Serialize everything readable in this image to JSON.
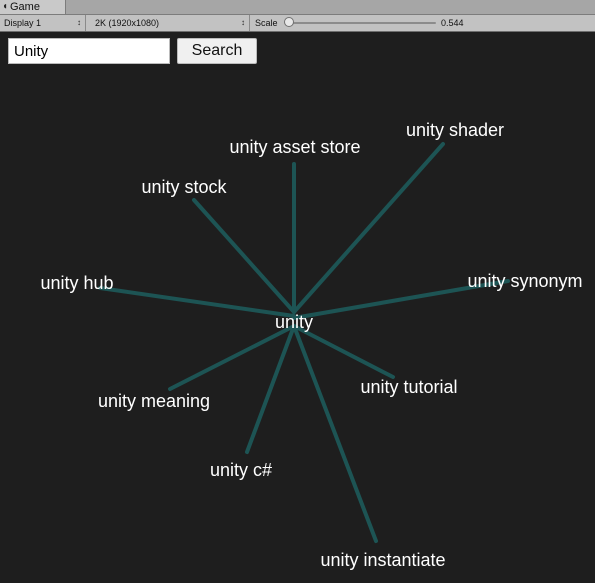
{
  "tab": {
    "icon": "pacman-game-icon",
    "label": "Game"
  },
  "toolbar": {
    "display": "Display 1",
    "resolution": "2K (1920x1080)",
    "scale_label": "Scale",
    "scale_value": "0.544"
  },
  "search": {
    "value": "Unity",
    "button_label": "Search"
  },
  "graph": {
    "center": "unity",
    "colors": {
      "edge": "#1d5454",
      "text": "#ffffff",
      "background": "#1e1e1e"
    },
    "nodes": [
      "unity asset store",
      "unity shader",
      "unity stock",
      "unity hub",
      "unity synonym",
      "unity meaning",
      "unity tutorial",
      "unity c#",
      "unity instantiate"
    ]
  }
}
